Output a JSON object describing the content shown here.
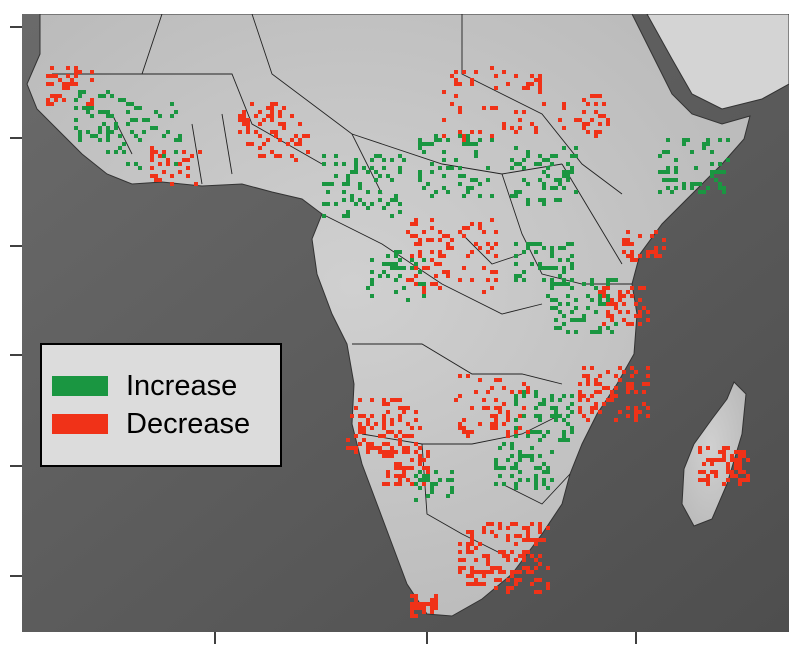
{
  "legend": {
    "items": [
      {
        "label": "Increase",
        "color": "#1a9641"
      },
      {
        "label": "Decrease",
        "color": "#f03218"
      }
    ]
  },
  "colors": {
    "ocean": "#5a5a5a",
    "land": "#c8c8c8",
    "land_light": "#e4e4e4",
    "border": "#222222",
    "increase": "#1a9641",
    "decrease": "#f03218"
  }
}
